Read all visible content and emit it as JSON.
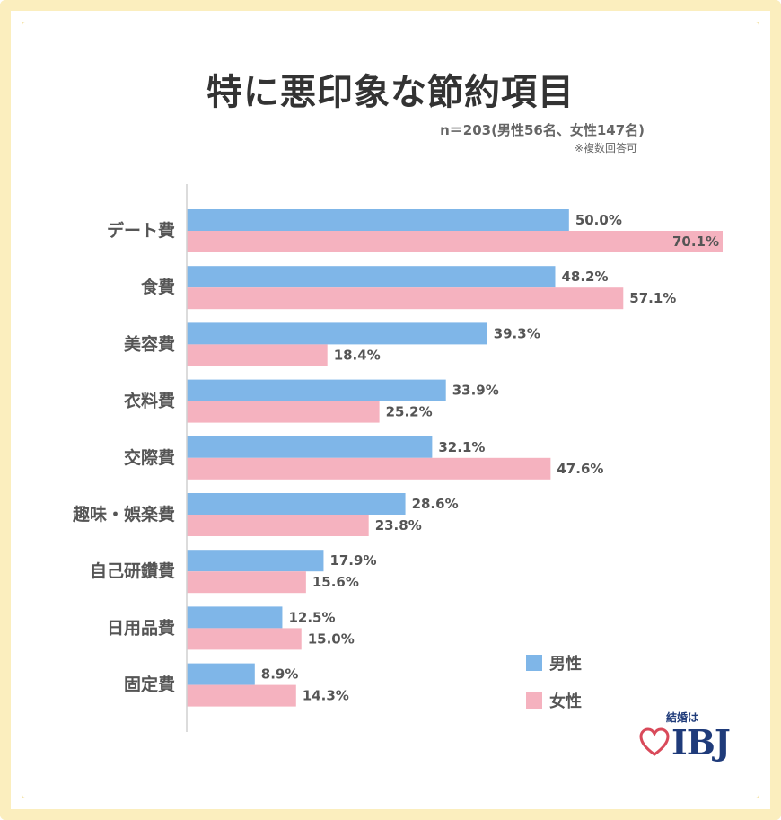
{
  "title": "特に悪印象な節約項目",
  "sample_note": "n＝203(男性56名、女性147名)",
  "multiple_answer_note": "※複数回答可",
  "chart_data": {
    "type": "bar",
    "orientation": "horizontal",
    "categories": [
      "デート費",
      "食費",
      "美容費",
      "衣料費",
      "交際費",
      "趣味・娯楽費",
      "自己研鑽費",
      "日用品費",
      "固定費"
    ],
    "series": [
      {
        "name": "男性",
        "color": "#7fb6e8",
        "values": [
          50.0,
          48.2,
          39.3,
          33.9,
          32.1,
          28.6,
          17.9,
          12.5,
          8.9
        ],
        "labels": [
          "50.0%",
          "48.2%",
          "39.3%",
          "33.9%",
          "32.1%",
          "28.6%",
          "17.9%",
          "12.5%",
          "8.9%"
        ]
      },
      {
        "name": "女性",
        "color": "#f5b2bf",
        "values": [
          70.1,
          57.1,
          18.4,
          25.2,
          47.6,
          23.8,
          15.6,
          15.0,
          14.3
        ],
        "labels": [
          "70.1%",
          "57.1%",
          "18.4%",
          "25.2%",
          "47.6%",
          "23.8%",
          "15.6%",
          "15.0%",
          "14.3%"
        ]
      }
    ],
    "xlim": [
      0,
      70.1
    ],
    "grid": false,
    "legend_position": "bottom-right"
  },
  "legend": {
    "items": [
      {
        "label": "男性",
        "color": "#7fb6e8"
      },
      {
        "label": "女性",
        "color": "#f5b2bf"
      }
    ]
  },
  "logo": {
    "tagline": "結婚は",
    "brand": "IBJ",
    "heart_color": "#d94a5a",
    "text_color": "#1f3b7a"
  },
  "colors": {
    "frame": "#fbeebe",
    "axis": "#d0d0d0",
    "text": "#555555",
    "title": "#333333"
  }
}
